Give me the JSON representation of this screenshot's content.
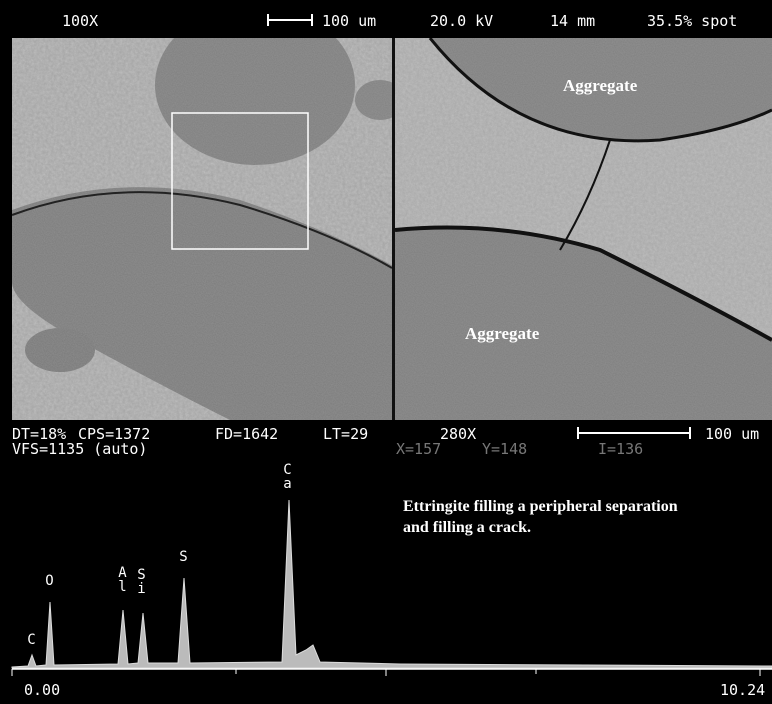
{
  "header": {
    "magnification": "100X",
    "scale": "100 um",
    "voltage": "20.0 kV",
    "distance": "14 mm",
    "spot": "35.5% spot"
  },
  "images": {
    "left_label": null,
    "right_labels": [
      "Aggregate",
      "Aggregate"
    ]
  },
  "eds": {
    "line1": [
      "DT=18%",
      "CPS=1372",
      "FD=1642",
      "LT=29",
      "280X",
      "100 um"
    ],
    "line2": [
      "VFS=1135 (auto)",
      "X=157",
      "Y=148",
      "I=136"
    ],
    "peaks": [
      "C",
      "O",
      "Al",
      "Si",
      "S",
      "Ca"
    ],
    "annotation": "Ettringite filling a peripheral separation and filling a crack.",
    "axis_start": "0.00",
    "axis_end": "10.24"
  }
}
